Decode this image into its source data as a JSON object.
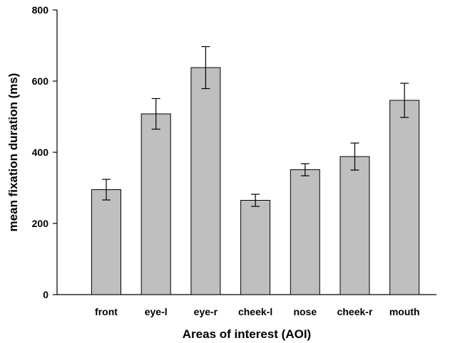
{
  "chart_data": {
    "type": "bar",
    "title": "",
    "xlabel": "Areas of interest (AOI)",
    "ylabel": "mean fixation duration (ms)",
    "ylim": [
      0,
      800
    ],
    "yticks": [
      0,
      200,
      400,
      600,
      800
    ],
    "categories": [
      "front",
      "eye-l",
      "eye-r",
      "cheek-l",
      "nose",
      "cheek-r",
      "mouth"
    ],
    "values": [
      295,
      508,
      638,
      265,
      351,
      388,
      546
    ],
    "error_bars": [
      29,
      43,
      59,
      17,
      17,
      38,
      48
    ],
    "bar_color": "#bfbfbf",
    "edge_color": "#000000",
    "grid": false,
    "legend": "none"
  }
}
